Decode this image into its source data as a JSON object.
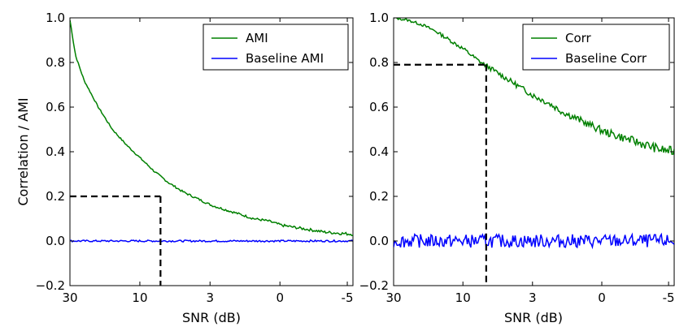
{
  "figure": {
    "ylabel": "Correlation / AMI"
  },
  "chart_data": [
    {
      "type": "line",
      "title": "",
      "xlabel": "SNR (dB)",
      "ylabel": "Correlation / AMI",
      "x_ticks": [
        "30",
        "10",
        "3",
        "0",
        "-5"
      ],
      "y_ticks": [
        "1.0",
        "0.8",
        "0.6",
        "0.4",
        "0.2",
        "0.0",
        "−0.2"
      ],
      "ylim": [
        -0.2,
        1.0
      ],
      "grid": false,
      "legend_position": "top-right",
      "series": [
        {
          "name": "AMI",
          "color": "#008000",
          "x": [
            0,
            0.02,
            0.05,
            0.1,
            0.15,
            0.2,
            0.25,
            0.3,
            0.35,
            0.4,
            0.45,
            0.5,
            0.55,
            0.6,
            0.65,
            0.7,
            0.75,
            0.8,
            0.85,
            0.9,
            0.95,
            1.0
          ],
          "values": [
            0.99,
            0.83,
            0.72,
            0.6,
            0.5,
            0.43,
            0.37,
            0.31,
            0.26,
            0.22,
            0.19,
            0.16,
            0.14,
            0.12,
            0.1,
            0.09,
            0.07,
            0.06,
            0.05,
            0.04,
            0.035,
            0.03
          ]
        },
        {
          "name": "Baseline AMI",
          "color": "#0000ff",
          "x": [
            0,
            1.0
          ],
          "values": [
            0.0,
            0.0
          ]
        }
      ],
      "annotations": [
        {
          "type": "dashed-guide",
          "x": 0.32,
          "y": 0.2
        }
      ]
    },
    {
      "type": "line",
      "title": "",
      "xlabel": "SNR (dB)",
      "ylabel": "",
      "x_ticks": [
        "30",
        "10",
        "3",
        "0",
        "-5"
      ],
      "y_ticks": [
        "1.0",
        "0.8",
        "0.6",
        "0.4",
        "0.2",
        "0.0",
        "−0.2"
      ],
      "ylim": [
        -0.2,
        1.0
      ],
      "grid": false,
      "legend_position": "top-right",
      "series": [
        {
          "name": "Corr",
          "color": "#008000",
          "x": [
            0,
            0.05,
            0.1,
            0.15,
            0.2,
            0.25,
            0.3,
            0.35,
            0.4,
            0.45,
            0.5,
            0.55,
            0.6,
            0.65,
            0.7,
            0.75,
            0.8,
            0.85,
            0.9,
            0.95,
            1.0
          ],
          "values": [
            1.0,
            0.99,
            0.97,
            0.94,
            0.9,
            0.86,
            0.81,
            0.77,
            0.73,
            0.69,
            0.65,
            0.62,
            0.58,
            0.55,
            0.52,
            0.49,
            0.47,
            0.45,
            0.43,
            0.41,
            0.4
          ]
        },
        {
          "name": "Baseline Corr",
          "color": "#0000ff",
          "x": [
            0,
            1.0
          ],
          "values": [
            0.0,
            0.0
          ]
        }
      ],
      "annotations": [
        {
          "type": "dashed-guide",
          "x": 0.33,
          "y": 0.79
        }
      ]
    }
  ]
}
